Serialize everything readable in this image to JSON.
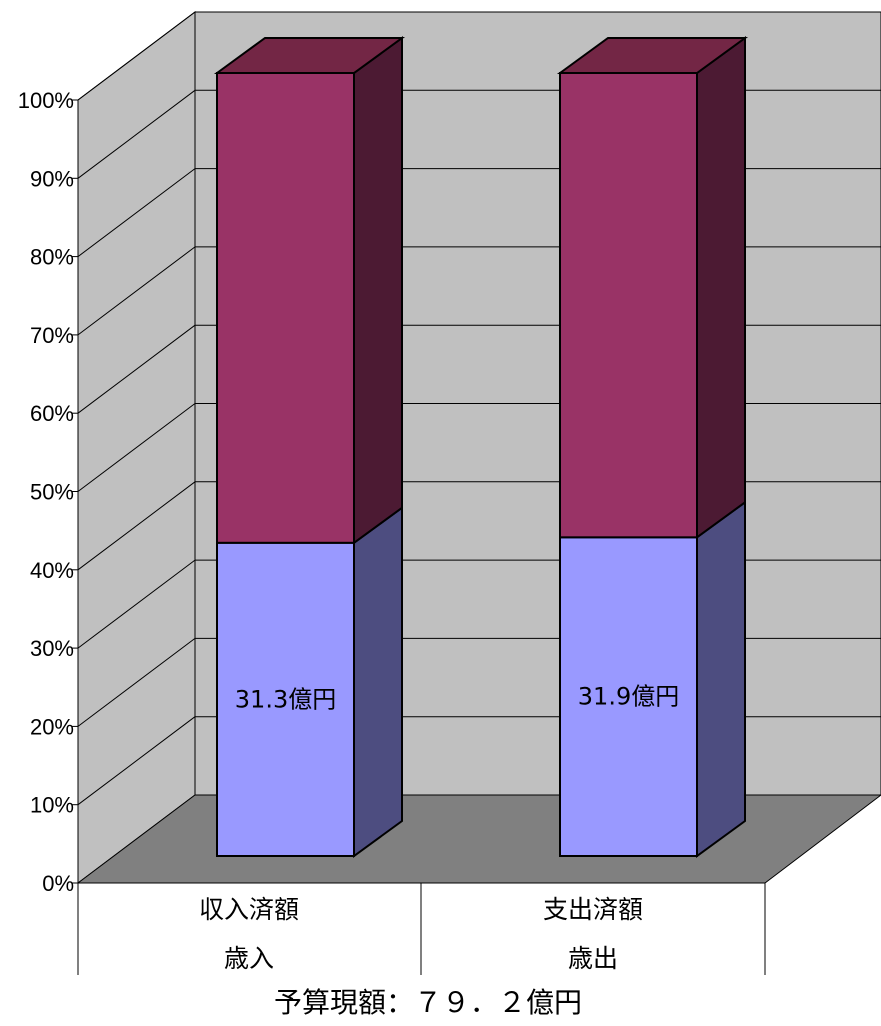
{
  "chart_data": {
    "type": "bar",
    "stacked": "percent",
    "three_d": true,
    "categories": [
      {
        "label": "収入済額",
        "group": "歳入"
      },
      {
        "label": "支出済額",
        "group": "歳出"
      }
    ],
    "series": [
      {
        "values": [
          40.0,
          40.7
        ],
        "data_labels": [
          "31.3億円",
          "31.9億円"
        ]
      },
      {
        "values": [
          60.0,
          59.3
        ]
      }
    ],
    "ylim": [
      0,
      100
    ],
    "y_ticks": [
      "0%",
      "10%",
      "20%",
      "30%",
      "40%",
      "50%",
      "60%",
      "70%",
      "80%",
      "90%",
      "100%"
    ],
    "grid": true,
    "legend": "none",
    "footer_caption": "予算現額：７９．２億円"
  },
  "colors": {
    "series_front": [
      "#9999ff",
      "#993366"
    ],
    "series_side": [
      "#4d4d80",
      "#4c1a33"
    ],
    "series_top": [
      "#9999ff",
      "#732645"
    ],
    "walls": "#c0c0c0",
    "floor": "#808080"
  }
}
